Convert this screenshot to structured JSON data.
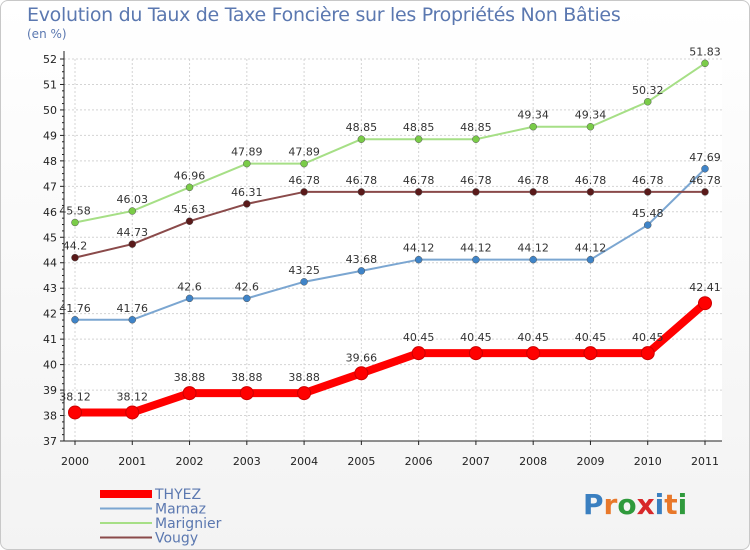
{
  "title": "Evolution du Taux de Taxe Foncière sur les Propriétés Non Bâties",
  "unit_label": "(en %)",
  "logo": {
    "text": "Proxiti",
    "letters": [
      "P",
      "r",
      "o",
      "x",
      "i",
      "t",
      "i"
    ],
    "colors": [
      "#3a7fc0",
      "#e8782a",
      "#2f9a3c",
      "#d8282a",
      "#3a7fc0",
      "#e8782a",
      "#2f9a3c"
    ]
  },
  "chart_data": {
    "type": "line",
    "title": "Evolution du Taux de Taxe Foncière sur les Propriétés Non Bâties",
    "ylabel": "(en %)",
    "x": [
      "2000",
      "2001",
      "2002",
      "2003",
      "2004",
      "2005",
      "2006",
      "2007",
      "2008",
      "2009",
      "2010",
      "2011"
    ],
    "ylim": [
      37,
      52
    ],
    "yticks": [
      37,
      38,
      39,
      40,
      41,
      42,
      43,
      44,
      45,
      46,
      47,
      48,
      49,
      50,
      51,
      52
    ],
    "grid": true,
    "legend_position": "bottom-left",
    "series": [
      {
        "name": "THYEZ",
        "color": "#ff0000",
        "marker_color": "#ff0000",
        "width": "thick",
        "values": [
          38.12,
          38.12,
          38.88,
          38.88,
          38.88,
          39.66,
          40.45,
          40.45,
          40.45,
          40.45,
          40.45,
          42.41
        ],
        "labels": [
          "38.12",
          "38.12",
          "38.88",
          "38.88",
          "38.88",
          "39.66",
          "40.45",
          "40.45",
          "40.45",
          "40.45",
          "40.45",
          "42.41"
        ]
      },
      {
        "name": "Marnaz",
        "color": "#7ba6d1",
        "marker_color": "#3f84c8",
        "width": "thin",
        "values": [
          41.76,
          41.76,
          42.6,
          42.6,
          43.25,
          43.68,
          44.12,
          44.12,
          44.12,
          44.12,
          45.48,
          47.69
        ],
        "labels": [
          "41.76",
          "41.76",
          "42.6",
          "42.6",
          "43.25",
          "43.68",
          "44.12",
          "44.12",
          "44.12",
          "44.12",
          "45.48",
          "47.69"
        ]
      },
      {
        "name": "Marignier",
        "color": "#a6df86",
        "marker_color": "#7acc48",
        "width": "thin",
        "values": [
          45.58,
          46.03,
          46.96,
          47.89,
          47.89,
          48.85,
          48.85,
          48.85,
          49.34,
          49.34,
          50.32,
          51.83
        ],
        "labels": [
          "45.58",
          "46.03",
          "46.96",
          "47.89",
          "47.89",
          "48.85",
          "48.85",
          "48.85",
          "49.34",
          "49.34",
          "50.32",
          "51.83"
        ]
      },
      {
        "name": "Vougy",
        "color": "#8a4a4a",
        "marker_color": "#5a1a1a",
        "width": "thin",
        "values": [
          44.2,
          44.73,
          45.63,
          46.31,
          46.78,
          46.78,
          46.78,
          46.78,
          46.78,
          46.78,
          46.78,
          46.78
        ],
        "labels": [
          "44.2",
          "44.73",
          "45.63",
          "46.31",
          "46.78",
          "46.78",
          "46.78",
          "46.78",
          "46.78",
          "46.78",
          "46.78",
          "46.78"
        ]
      }
    ]
  }
}
